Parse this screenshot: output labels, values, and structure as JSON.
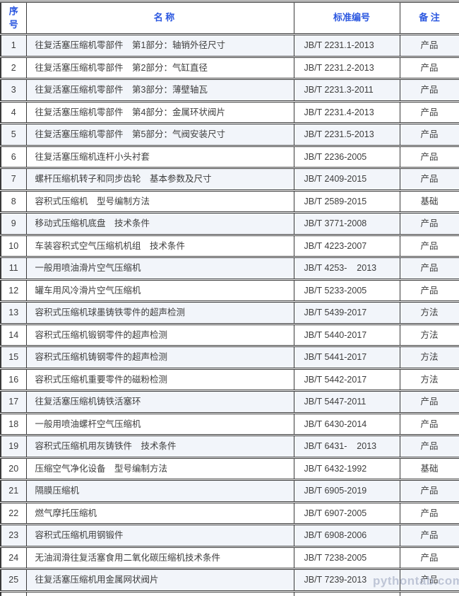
{
  "watermark": "pythontab.com",
  "colors": {
    "header_text": "#2b57e0",
    "body_text": "#3d3d3d",
    "border": "#3a3a3a",
    "odd_row_bg": "#f2f5fa",
    "even_row_bg": "#ffffff"
  },
  "table": {
    "headers": [
      "序 号",
      "名 称",
      "标准编号",
      "备 注"
    ],
    "rows": [
      {
        "no": "1",
        "name": "往复活塞压缩机零部件　第1部分：轴销外径尺寸",
        "std": "JB/T 2231.1-2013",
        "note": "产品"
      },
      {
        "no": "2",
        "name": "往复活塞压缩机零部件　第2部分：气缸直径",
        "std": "JB/T 2231.2-2013",
        "note": "产品"
      },
      {
        "no": "3",
        "name": "往复活塞压缩机零部件　第3部分：薄壁轴瓦",
        "std": "JB/T 2231.3-2011",
        "note": "产品"
      },
      {
        "no": "4",
        "name": "往复活塞压缩机零部件　第4部分：金属环状阀片",
        "std": "JB/T 2231.4-2013",
        "note": "产品"
      },
      {
        "no": "5",
        "name": "往复活塞压缩机零部件　第5部分：气阀安装尺寸",
        "std": "JB/T 2231.5-2013",
        "note": "产品"
      },
      {
        "no": "6",
        "name": "往复活塞压缩机连杆小头衬套",
        "std": "JB/T 2236-2005",
        "note": "产品"
      },
      {
        "no": "7",
        "name": "螺杆压缩机转子和同步齿轮　基本参数及尺寸",
        "std": "JB/T 2409-2015",
        "note": "产品"
      },
      {
        "no": "8",
        "name": "容积式压缩机　型号编制方法",
        "std": "JB/T 2589-2015",
        "note": "基础"
      },
      {
        "no": "9",
        "name": "移动式压缩机底盘　技术条件",
        "std": "JB/T 3771-2008",
        "note": "产品"
      },
      {
        "no": "10",
        "name": "车装容积式空气压缩机机组　技术条件",
        "std": "JB/T 4223-2007",
        "note": "产品"
      },
      {
        "no": "11",
        "name": "一般用喷油滑片空气压缩机",
        "std": "JB/T 4253-    2013",
        "note": "产品"
      },
      {
        "no": "12",
        "name": "罐车用风冷滑片空气压缩机",
        "std": "JB/T 5233-2005",
        "note": "产品"
      },
      {
        "no": "13",
        "name": "容积式压缩机球墨铸铁零件的超声检测",
        "std": "JB/T 5439-2017",
        "note": "方法"
      },
      {
        "no": "14",
        "name": "容积式压缩机锻钢零件的超声检测",
        "std": "JB/T 5440-2017",
        "note": "方法"
      },
      {
        "no": "15",
        "name": "容积式压缩机铸钢零件的超声检测",
        "std": "JB/T 5441-2017",
        "note": "方法"
      },
      {
        "no": "16",
        "name": "容积式压缩机重要零件的磁粉检测",
        "std": "JB/T 5442-2017",
        "note": "方法"
      },
      {
        "no": "17",
        "name": "往复活塞压缩机铸铁活塞环",
        "std": "JB/T 5447-2011",
        "note": "产品"
      },
      {
        "no": "18",
        "name": "一般用喷油螺杆空气压缩机",
        "std": "JB/T 6430-2014",
        "note": "产品"
      },
      {
        "no": "19",
        "name": "容积式压缩机用灰铸铁件　技术条件",
        "std": "JB/T 6431-    2013",
        "note": "产品"
      },
      {
        "no": "20",
        "name": "压缩空气净化设备　型号编制方法",
        "std": "JB/T 6432-1992",
        "note": "基础"
      },
      {
        "no": "21",
        "name": "隔膜压缩机",
        "std": "JB/T 6905-2019",
        "note": "产品"
      },
      {
        "no": "22",
        "name": "燃气摩托压缩机",
        "std": "JB/T 6907-2005",
        "note": "产品"
      },
      {
        "no": "23",
        "name": "容积式压缩机用钢锻件",
        "std": "JB/T 6908-2006",
        "note": "产品"
      },
      {
        "no": "24",
        "name": "无油润滑往复活塞食用二氧化碳压缩机技术条件",
        "std": "JB/T 7238-2005",
        "note": "产品"
      },
      {
        "no": "25",
        "name": "往复活塞压缩机用金属网状阀片",
        "std": "JB/T 7239-2013",
        "note": "产品"
      }
    ]
  }
}
